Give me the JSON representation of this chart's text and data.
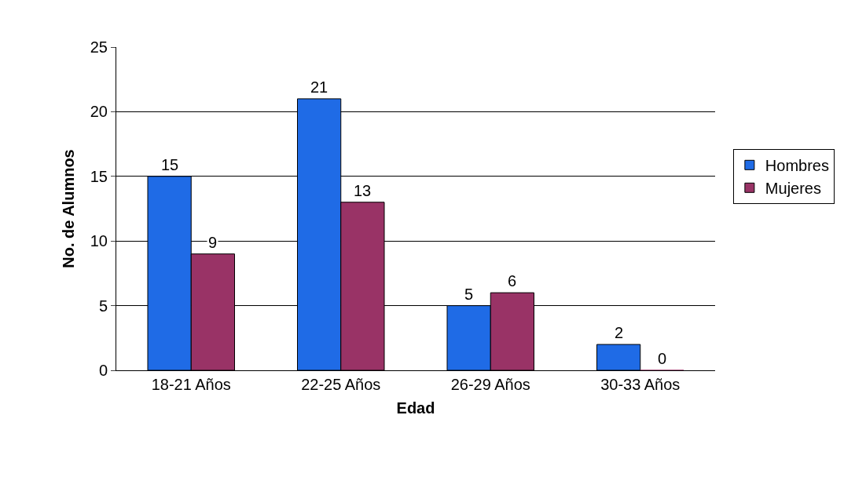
{
  "chart_data": {
    "type": "bar",
    "xlabel": "Edad",
    "ylabel": "No. de Alumnos",
    "categories": [
      "18-21 Años",
      "22-25 Años",
      "26-29 Años",
      "30-33 Años"
    ],
    "series": [
      {
        "name": "Hombres",
        "color": "#1f6be6",
        "values": [
          15,
          21,
          5,
          2
        ]
      },
      {
        "name": "Mujeres",
        "color": "#993366",
        "values": [
          9,
          13,
          6,
          0
        ]
      }
    ],
    "ylim": [
      0,
      25
    ],
    "yticks": [
      0,
      5,
      10,
      15,
      20,
      25
    ],
    "grid": "y",
    "legend": "right",
    "data_labels": true
  }
}
